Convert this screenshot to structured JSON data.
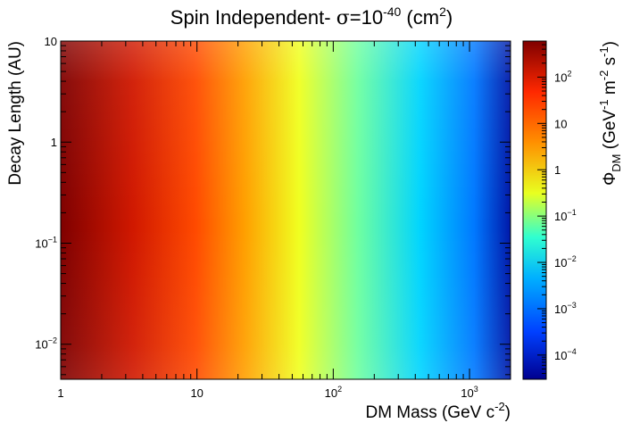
{
  "chart_data": {
    "type": "heatmap",
    "title": {
      "prefix": "Spin Independent- ",
      "sigma": "σ",
      "eq": "=10",
      "exp": "-40",
      "units_open": " (cm",
      "units_exp": "2",
      "units_close": ")"
    },
    "xlabel": {
      "base": "DM Mass (GeV c",
      "exp": "-2",
      "close": ")"
    },
    "ylabel": "Decay Length (AU)",
    "zlabel": {
      "phi": "Φ",
      "sub": "DM",
      "open": " (GeV",
      "e1": "-1",
      "m": " m",
      "e2": "-2",
      "s": " s",
      "e3": "-1",
      "close": ")"
    },
    "x_scale": "log",
    "y_scale": "log",
    "z_scale": "log",
    "xlim": [
      1,
      2000
    ],
    "ylim": [
      0.0045,
      10
    ],
    "zlim": [
      3e-05,
      600
    ],
    "x_ticks": [
      {
        "value": 1,
        "base": "1",
        "exp": ""
      },
      {
        "value": 10,
        "base": "10",
        "exp": ""
      },
      {
        "value": 100,
        "base": "10",
        "exp": "2"
      },
      {
        "value": 1000,
        "base": "10",
        "exp": "3"
      }
    ],
    "y_ticks": [
      {
        "value": 0.01,
        "base": "10",
        "exp": "−2"
      },
      {
        "value": 0.1,
        "base": "10",
        "exp": "−1"
      },
      {
        "value": 1,
        "base": "1",
        "exp": ""
      },
      {
        "value": 10,
        "base": "10",
        "exp": ""
      }
    ],
    "z_ticks": [
      {
        "value": 100,
        "base": "10",
        "exp": "2"
      },
      {
        "value": 10,
        "base": "10",
        "exp": ""
      },
      {
        "value": 1,
        "base": "1",
        "exp": ""
      },
      {
        "value": 0.1,
        "base": "10",
        "exp": "−1"
      },
      {
        "value": 0.01,
        "base": "10",
        "exp": "−2"
      },
      {
        "value": 0.001,
        "base": "10",
        "exp": "−3"
      },
      {
        "value": 0.0001,
        "base": "10",
        "exp": "−4"
      }
    ],
    "colormap": [
      "#00008f",
      "#0060ff",
      "#00dfff",
      "#7fff7f",
      "#e8ff20",
      "#ff9000",
      "#ff3000",
      "#7f0000"
    ],
    "grid": false,
    "legend": "colorbar-right"
  }
}
